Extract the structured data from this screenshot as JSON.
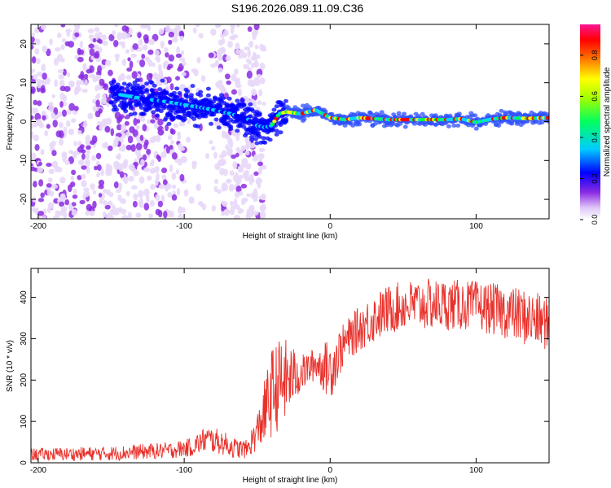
{
  "title": "S196.2026.089.11.09.C36",
  "colors": {
    "snr_line": "#e8302a",
    "frame": "#000000",
    "background": "#ffffff",
    "colormap": [
      "#ffffff",
      "#e8d8f8",
      "#8a2be2",
      "#0000ff",
      "#00d4ff",
      "#00ff40",
      "#ffff00",
      "#ff0000",
      "#ff1493"
    ]
  },
  "chart_data": [
    {
      "type": "heatmap",
      "title": "",
      "xlabel": "Height of straight line (km)",
      "ylabel": "Frequency (Hz)",
      "xlim": [
        -205,
        150
      ],
      "ylim": [
        -25,
        25
      ],
      "xticks": [
        -200,
        -100,
        0,
        100
      ],
      "xtick_labels": [
        "-200",
        "-100",
        "0",
        "100"
      ],
      "yticks": [
        -20,
        -10,
        0,
        10,
        20
      ],
      "ytick_labels": [
        "-20",
        "-10",
        "0",
        "10",
        "20"
      ],
      "ridge": {
        "x": [
          -145,
          -130,
          -110,
          -95,
          -80,
          -68,
          -58,
          -50,
          -45,
          -40,
          -35,
          -30,
          -20,
          -10,
          0,
          10,
          20,
          40,
          60,
          80,
          90,
          100,
          110,
          120,
          135,
          150
        ],
        "y": [
          7,
          6,
          5,
          4,
          3,
          2,
          1,
          -1,
          -1.5,
          -1,
          2,
          2.5,
          2,
          3,
          1,
          0.5,
          1,
          0.5,
          0.5,
          0.5,
          0.7,
          -0.2,
          0.6,
          1,
          0.8,
          1
        ]
      },
      "colorbar": {
        "label": "Normalized spectral amplitude",
        "range": [
          0.0,
          0.95
        ],
        "ticks": [
          0.0,
          0.2,
          0.4,
          0.6,
          0.8
        ],
        "tick_labels": [
          "0.0",
          "0.2",
          "0.4",
          "0.6",
          "0.8"
        ]
      }
    },
    {
      "type": "line",
      "title": "",
      "xlabel": "Height of straight line (km)",
      "ylabel": "SNR (10 * v/v)",
      "xlim": [
        -205,
        150
      ],
      "ylim": [
        0,
        470
      ],
      "xticks": [
        -200,
        -100,
        0,
        100
      ],
      "xtick_labels": [
        "-200",
        "-100",
        "0",
        "100"
      ],
      "yticks": [
        0,
        100,
        200,
        300,
        400
      ],
      "ytick_labels": [
        "0",
        "100",
        "200",
        "300",
        "400"
      ],
      "series": [
        {
          "name": "SNR",
          "envelope_x": [
            -205,
            -150,
            -130,
            -110,
            -95,
            -85,
            -75,
            -65,
            -57,
            -50,
            -45,
            -40,
            -35,
            -30,
            -25,
            -20,
            -10,
            0,
            10,
            20,
            30,
            40,
            50,
            60,
            80,
            100,
            120,
            135,
            150
          ],
          "envelope_low": [
            5,
            5,
            8,
            10,
            15,
            25,
            20,
            10,
            10,
            30,
            40,
            60,
            80,
            100,
            140,
            170,
            200,
            150,
            240,
            270,
            290,
            310,
            320,
            320,
            320,
            320,
            300,
            280,
            270
          ],
          "envelope_high": [
            35,
            40,
            45,
            50,
            60,
            90,
            80,
            60,
            55,
            120,
            200,
            280,
            300,
            300,
            280,
            260,
            280,
            300,
            340,
            380,
            410,
            430,
            440,
            445,
            445,
            440,
            430,
            420,
            400
          ]
        }
      ]
    }
  ]
}
